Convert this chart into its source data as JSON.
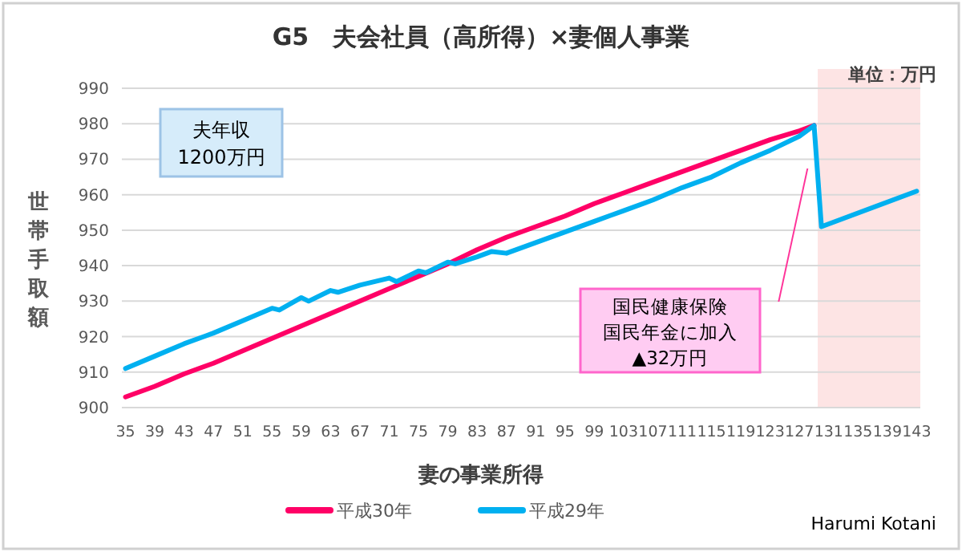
{
  "chart_data": {
    "type": "line",
    "title": "G5　夫会社員（高所得）×妻個人事業",
    "xlabel": "妻の事業所得",
    "ylabel": "世帯手取額",
    "annotations": [
      "夫年収\n1200万円",
      "単位：万円",
      "国民健康保険",
      "国民年金に加入",
      "▲32万円",
      "Harumi Kotani"
    ],
    "series": [
      {
        "name": "平成30年",
        "color": "#ff0066",
        "x": [
          35,
          39,
          43,
          47,
          51,
          55,
          59,
          63,
          67,
          71,
          75,
          79,
          83,
          87,
          91,
          95,
          99,
          103,
          107,
          111,
          115,
          119,
          123,
          127,
          129
        ],
        "values": [
          903,
          906,
          909.5,
          912.5,
          916,
          919.5,
          923,
          926.5,
          930,
          933.5,
          937,
          940.5,
          944.5,
          948,
          951,
          954,
          957.5,
          960.5,
          963.5,
          966.5,
          969.5,
          972.5,
          975.5,
          978,
          979.5
        ]
      },
      {
        "name": "平成29年",
        "color": "#00b0f0",
        "x": [
          35,
          39,
          43,
          47,
          51,
          55,
          56,
          59,
          60,
          63,
          64,
          67,
          71,
          72,
          75,
          76,
          79,
          80,
          83,
          85,
          87,
          91,
          95,
          99,
          103,
          107,
          111,
          115,
          119,
          123,
          127,
          129,
          130,
          143
        ],
        "values": [
          911,
          914.5,
          918,
          921,
          924.5,
          928,
          927.5,
          931,
          930,
          933,
          932.5,
          934.5,
          936.5,
          935.5,
          938.5,
          938,
          941,
          940.5,
          942.5,
          944,
          943.5,
          946.5,
          949.5,
          952.5,
          955.5,
          958.5,
          962,
          965,
          969,
          972.5,
          976.5,
          979.5,
          951,
          961
        ]
      }
    ],
    "xlim": [
      34.5,
      143.5
    ],
    "xticks": [
      35,
      39,
      43,
      47,
      51,
      55,
      59,
      63,
      67,
      71,
      75,
      79,
      83,
      87,
      91,
      95,
      99,
      103,
      107,
      111,
      115,
      119,
      123,
      127,
      131,
      135,
      139,
      143
    ],
    "ylim": [
      900,
      990
    ],
    "yticks": [
      900,
      910,
      920,
      930,
      940,
      950,
      960,
      970,
      980,
      990
    ],
    "bands": [
      {
        "axis": "x",
        "from": 129.5,
        "to": 143.5,
        "color": "#fde4e4"
      }
    ],
    "grid": "y",
    "legend": "bottom",
    "marker": "none",
    "line_style": "solid"
  }
}
